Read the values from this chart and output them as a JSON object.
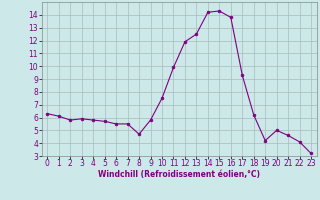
{
  "x": [
    0,
    1,
    2,
    3,
    4,
    5,
    6,
    7,
    8,
    9,
    10,
    11,
    12,
    13,
    14,
    15,
    16,
    17,
    18,
    19,
    20,
    21,
    22,
    23
  ],
  "y": [
    6.3,
    6.1,
    5.8,
    5.9,
    5.8,
    5.7,
    5.5,
    5.5,
    4.7,
    5.8,
    7.5,
    9.9,
    11.9,
    12.5,
    14.2,
    14.3,
    13.8,
    9.3,
    6.2,
    4.2,
    5.0,
    4.6,
    4.1,
    3.2
  ],
  "line_color": "#800080",
  "marker_color": "#800080",
  "bg_color": "#cce8e8",
  "grid_color": "#aabbbb",
  "xlabel": "Windchill (Refroidissement éolien,°C)",
  "xlim": [
    -0.5,
    23.5
  ],
  "ylim": [
    3,
    15
  ],
  "yticks": [
    3,
    4,
    5,
    6,
    7,
    8,
    9,
    10,
    11,
    12,
    13,
    14
  ],
  "xticks": [
    0,
    1,
    2,
    3,
    4,
    5,
    6,
    7,
    8,
    9,
    10,
    11,
    12,
    13,
    14,
    15,
    16,
    17,
    18,
    19,
    20,
    21,
    22,
    23
  ],
  "label_fontsize": 5.0,
  "tick_fontsize": 5.5,
  "xlabel_fontsize": 5.5
}
